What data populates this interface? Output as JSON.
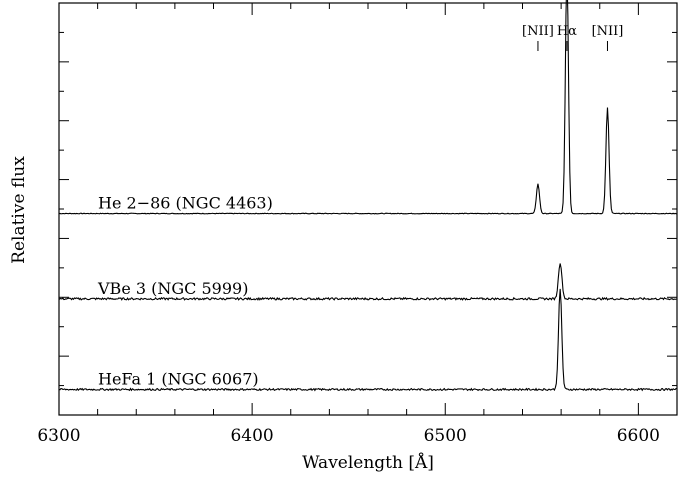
{
  "chart_data": {
    "type": "line",
    "xlabel": "Wavelength [Å]",
    "ylabel": "Relative flux",
    "xlim": [
      6300,
      6620
    ],
    "ylim": [
      0,
      1
    ],
    "grid": false,
    "x_ticks": [
      6300,
      6400,
      6500,
      6600
    ],
    "line_markers": [
      {
        "label": "[NII]",
        "wavelength": 6548
      },
      {
        "label": "Hα",
        "wavelength": 6563
      },
      {
        "label": "[NII]",
        "wavelength": 6584
      }
    ],
    "series": [
      {
        "name": "He 2−86  (NGC 4463)",
        "baseline": 0.489,
        "noise": 0.0008,
        "peaks": [
          {
            "wavelength": 6548,
            "height": 0.072,
            "width": 0.8
          },
          {
            "wavelength": 6563,
            "height": 0.584,
            "width": 0.8
          },
          {
            "wavelength": 6584,
            "height": 0.257,
            "width": 0.8
          }
        ]
      },
      {
        "name": "VBe 3  (NGC 5999)",
        "baseline": 0.282,
        "noise": 0.0025,
        "peaks": [
          {
            "wavelength": 6559.5,
            "height": 0.088,
            "width": 0.9
          }
        ]
      },
      {
        "name": "HeFa 1  (NGC 6067)",
        "baseline": 0.062,
        "noise": 0.0022,
        "peaks": [
          {
            "wavelength": 6559.5,
            "height": 0.243,
            "width": 0.85
          }
        ]
      }
    ]
  }
}
